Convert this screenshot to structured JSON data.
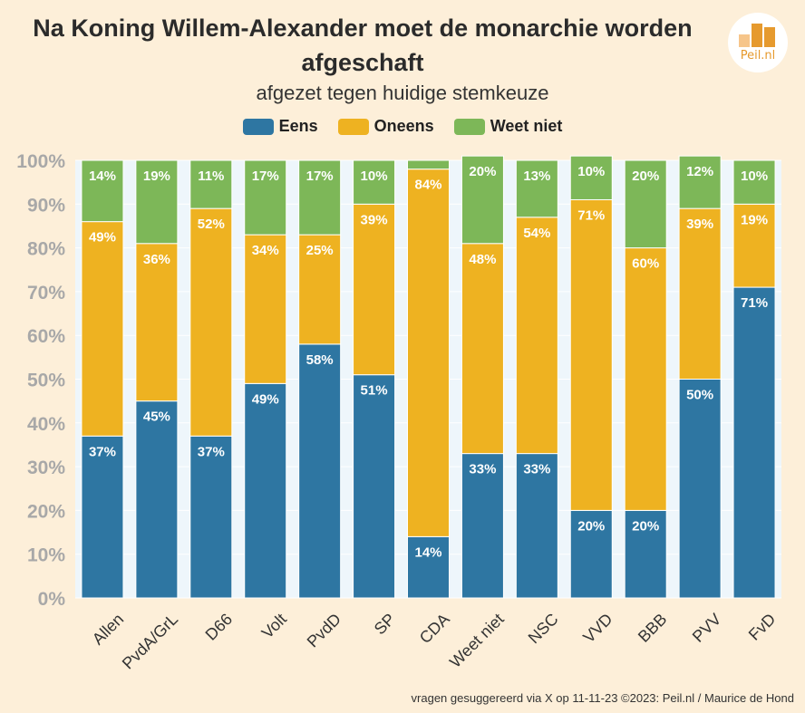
{
  "chart_data": {
    "type": "bar",
    "stacked": true,
    "title": "Na Koning Willem-Alexander moet de monarchie worden afgeschaft",
    "subtitle": "afgezet tegen huidige stemkeuze",
    "categories": [
      "Allen",
      "PvdA/GrL",
      "D66",
      "Volt",
      "PvdD",
      "SP",
      "CDA",
      "Weet niet",
      "NSC",
      "VVD",
      "BBB",
      "PVV",
      "FvD"
    ],
    "series": [
      {
        "name": "Eens",
        "color": "#2e76a2",
        "values": [
          37,
          45,
          37,
          49,
          58,
          51,
          14,
          33,
          33,
          20,
          20,
          50,
          71
        ]
      },
      {
        "name": "Oneens",
        "color": "#eeb221",
        "values": [
          49,
          36,
          52,
          34,
          25,
          39,
          84,
          48,
          54,
          71,
          60,
          39,
          19
        ]
      },
      {
        "name": "Weet niet",
        "color": "#7db758",
        "values": [
          14,
          19,
          11,
          17,
          17,
          10,
          2,
          20,
          13,
          10,
          20,
          12,
          10
        ]
      }
    ],
    "labels": [
      [
        "37%",
        "45%",
        "37%",
        "49%",
        "58%",
        "51%",
        "14%",
        "33%",
        "33%",
        "20%",
        "20%",
        "50%",
        "71%"
      ],
      [
        "49%",
        "36%",
        "52%",
        "34%",
        "25%",
        "39%",
        "84%",
        "48%",
        "54%",
        "71%",
        "60%",
        "39%",
        "19%"
      ],
      [
        "14%",
        "19%",
        "11%",
        "17%",
        "17%",
        "10%",
        "",
        "20%",
        "13%",
        "10%",
        "20%",
        "12%",
        "10%"
      ]
    ],
    "yticks": [
      "0%",
      "10%",
      "20%",
      "30%",
      "40%",
      "50%",
      "60%",
      "70%",
      "80%",
      "90%",
      "100%"
    ],
    "ylim": [
      0,
      100
    ],
    "legend_position": "top"
  },
  "logo_text": "Peil.nl",
  "footer": "vragen gesuggereerd via X op 11-11-23 ©2023: Peil.nl / Maurice de Hond"
}
